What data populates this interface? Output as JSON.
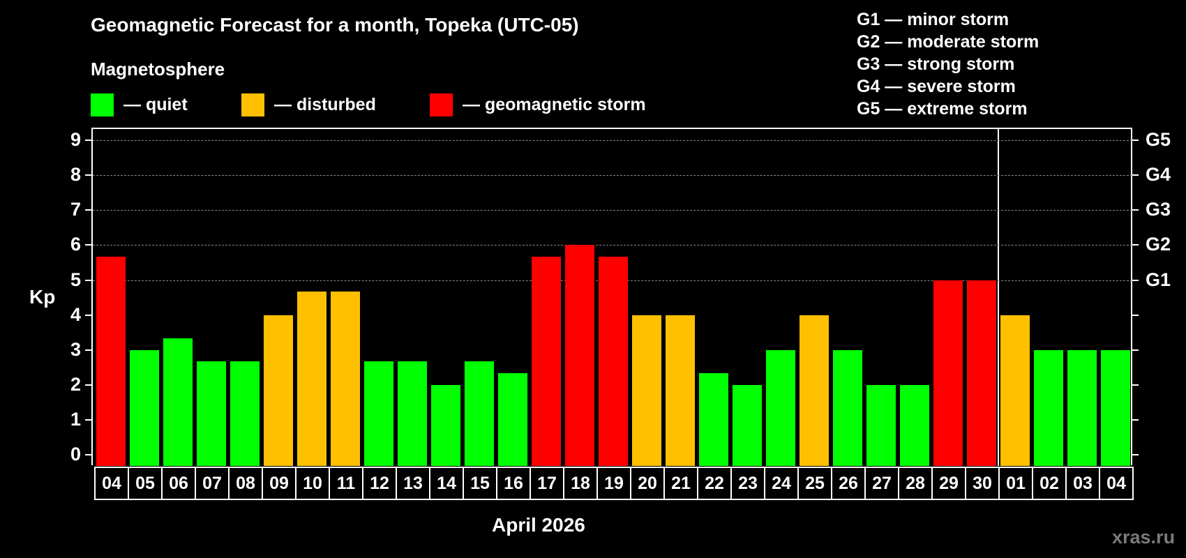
{
  "title": "Geomagnetic Forecast for a month, Topeka (UTC-05)",
  "subtitle": "Magnetosphere",
  "legend": [
    {
      "label": "— quiet",
      "color": "#00ff00"
    },
    {
      "label": "— disturbed",
      "color": "#ffc000"
    },
    {
      "label": "— geomagnetic storm",
      "color": "#ff0000"
    }
  ],
  "g_legend": [
    "G1 — minor storm",
    "G2 — moderate storm",
    "G3 — strong storm",
    "G4 — severe storm",
    "G5 — extreme storm"
  ],
  "y_axis_label": "Kp",
  "x_axis_label": "April 2026",
  "watermark": "xras.ru",
  "y_ticks": [
    "0",
    "1",
    "2",
    "3",
    "4",
    "5",
    "6",
    "7",
    "8",
    "9"
  ],
  "g_ticks": [
    {
      "label": "G1",
      "kp": 5
    },
    {
      "label": "G2",
      "kp": 6
    },
    {
      "label": "G3",
      "kp": 7
    },
    {
      "label": "G4",
      "kp": 8
    },
    {
      "label": "G5",
      "kp": 9
    }
  ],
  "colors": {
    "quiet": "#00ff00",
    "disturbed": "#ffc000",
    "storm": "#ff0000",
    "grid": "#888888",
    "background": "#000000"
  },
  "chart_data": {
    "type": "bar",
    "title": "Geomagnetic Forecast for a month, Topeka (UTC-05)",
    "xlabel": "April 2026",
    "ylabel": "Kp",
    "ylim": [
      0,
      9
    ],
    "secondary_y_labels": {
      "5": "G1",
      "6": "G2",
      "7": "G3",
      "8": "G4",
      "9": "G5"
    },
    "grid": "horizontal dashed at Kp 5-9",
    "categories": [
      "04",
      "05",
      "06",
      "07",
      "08",
      "09",
      "10",
      "11",
      "12",
      "13",
      "14",
      "15",
      "16",
      "17",
      "18",
      "19",
      "20",
      "21",
      "22",
      "23",
      "24",
      "25",
      "26",
      "27",
      "28",
      "29",
      "30",
      "01",
      "02",
      "03",
      "04"
    ],
    "values": [
      5.67,
      3,
      3.33,
      2.67,
      2.67,
      4,
      4.67,
      4.67,
      2.67,
      2.67,
      2,
      2.67,
      2.33,
      5.67,
      6,
      5.67,
      4,
      4,
      2.33,
      2,
      3,
      4,
      3,
      2,
      2,
      5,
      5,
      4,
      3,
      3,
      3
    ],
    "status": [
      "storm",
      "quiet",
      "quiet",
      "quiet",
      "quiet",
      "disturbed",
      "disturbed",
      "disturbed",
      "quiet",
      "quiet",
      "quiet",
      "quiet",
      "quiet",
      "storm",
      "storm",
      "storm",
      "disturbed",
      "disturbed",
      "quiet",
      "quiet",
      "quiet",
      "disturbed",
      "quiet",
      "quiet",
      "quiet",
      "storm",
      "storm",
      "disturbed",
      "quiet",
      "quiet",
      "quiet"
    ],
    "legend": [
      "quiet",
      "disturbed",
      "geomagnetic storm"
    ],
    "month_separator_after": "30"
  }
}
